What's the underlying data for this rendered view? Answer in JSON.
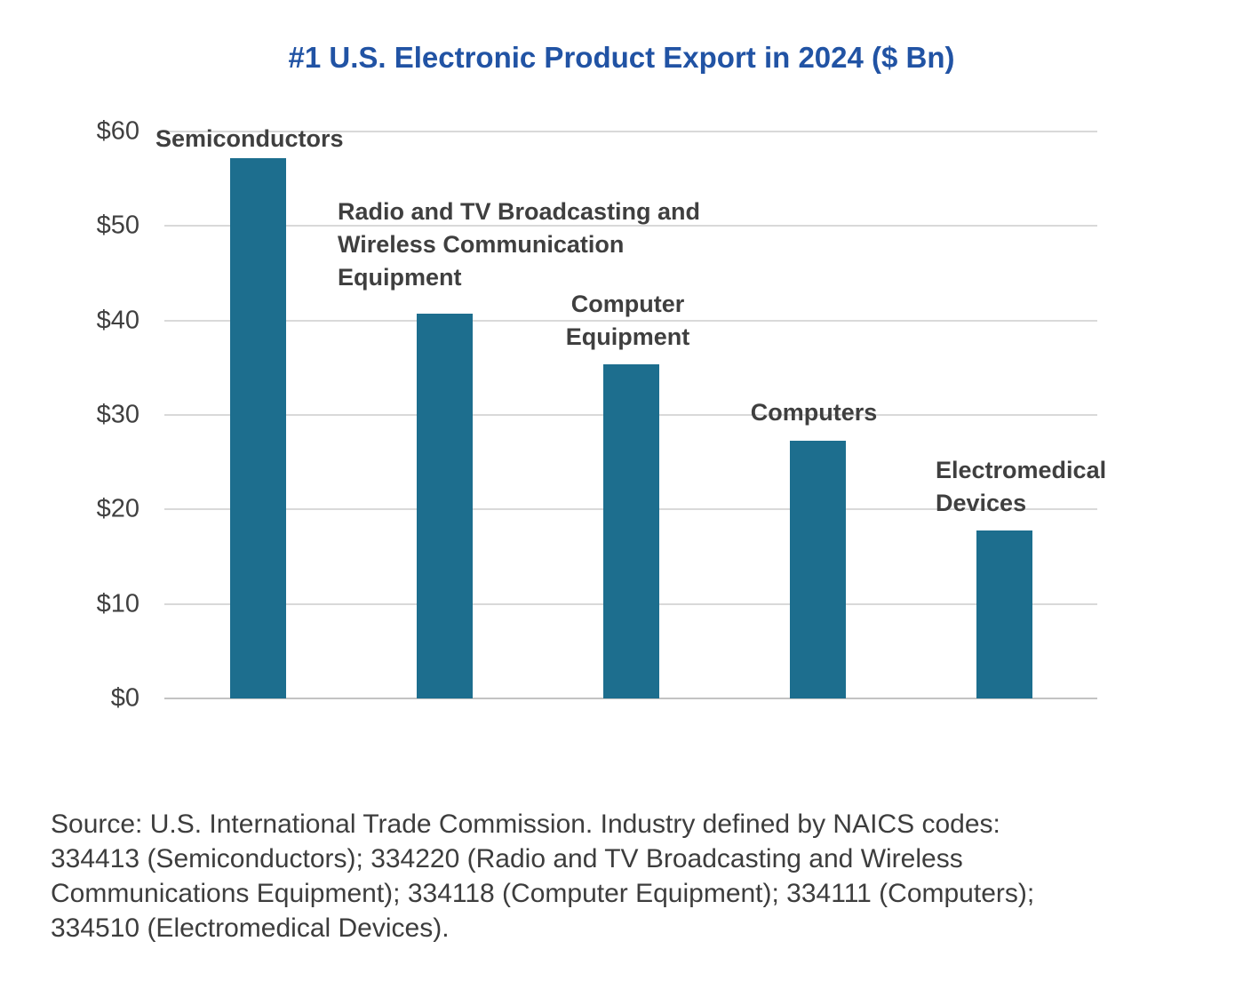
{
  "chart_data": {
    "type": "bar",
    "title": "#1 U.S. Electronic Product Export in 2024 ($ Bn)",
    "categories": [
      "Semiconductors",
      "Radio and TV Broadcasting and Wireless Communication Equipment",
      "Computer Equipment",
      "Computers",
      "Electromedical Devices"
    ],
    "values": [
      57.2,
      40.7,
      35.4,
      27.3,
      17.8
    ],
    "bar_labels": [
      "Semiconductors",
      "Radio and TV Broadcasting and\nWireless Communication\nEquipment",
      "Computer\nEquipment",
      "Computers",
      "Electromedical\nDevices"
    ],
    "ylim": [
      0,
      60
    ],
    "yticks": [
      0,
      10,
      20,
      30,
      40,
      50,
      60
    ],
    "ytick_labels": [
      "$0",
      "$10",
      "$20",
      "$30",
      "$40",
      "$50",
      "$60"
    ],
    "bar_color": "#1d6e8e",
    "grid": true,
    "legend": "none",
    "xlabel": "",
    "ylabel": ""
  },
  "source_note": "Source: U.S. International Trade Commission. Industry defined by NAICS codes:\n334413 (Semiconductors); 334220 (Radio and TV Broadcasting and Wireless\nCommunications Equipment); 334118 (Computer Equipment); 334111 (Computers);\n334510 (Electromedical Devices)."
}
